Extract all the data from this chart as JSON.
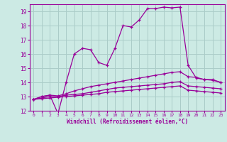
{
  "xlabel": "Windchill (Refroidissement éolien,°C)",
  "bg_color": "#cceae4",
  "grid_color": "#aaccc8",
  "line_color": "#990099",
  "xlim": [
    -0.5,
    23.5
  ],
  "ylim": [
    12,
    19.5
  ],
  "yticks": [
    12,
    13,
    14,
    15,
    16,
    17,
    18,
    19
  ],
  "xticks": [
    0,
    1,
    2,
    3,
    4,
    5,
    6,
    7,
    8,
    9,
    10,
    11,
    12,
    13,
    14,
    15,
    16,
    17,
    18,
    19,
    20,
    21,
    22,
    23
  ],
  "curve1_x": [
    0,
    1,
    2,
    3,
    4,
    5,
    6,
    7,
    8,
    9,
    10,
    11,
    12,
    13,
    14,
    15,
    16,
    17,
    18,
    19,
    20,
    21,
    22,
    23
  ],
  "curve1_y": [
    12.8,
    13.0,
    13.1,
    11.8,
    14.0,
    16.0,
    16.4,
    16.3,
    15.4,
    15.2,
    16.4,
    18.0,
    17.9,
    18.4,
    19.2,
    19.2,
    19.3,
    19.25,
    19.3,
    15.2,
    14.3,
    14.2,
    14.2,
    14.0
  ],
  "curve2_x": [
    0,
    1,
    2,
    3,
    4,
    5,
    6,
    7,
    8,
    9,
    10,
    11,
    12,
    13,
    14,
    15,
    16,
    17,
    18,
    19,
    20,
    21,
    22,
    23
  ],
  "curve2_y": [
    12.8,
    13.0,
    13.1,
    13.05,
    13.2,
    13.4,
    13.55,
    13.7,
    13.8,
    13.9,
    14.0,
    14.1,
    14.2,
    14.3,
    14.4,
    14.5,
    14.6,
    14.7,
    14.75,
    14.4,
    14.35,
    14.2,
    14.15,
    14.0
  ],
  "curve3_x": [
    0,
    1,
    2,
    3,
    4,
    5,
    6,
    7,
    8,
    9,
    10,
    11,
    12,
    13,
    14,
    15,
    16,
    17,
    18,
    19,
    20,
    21,
    22,
    23
  ],
  "curve3_y": [
    12.8,
    12.9,
    13.0,
    13.0,
    13.1,
    13.15,
    13.2,
    13.3,
    13.4,
    13.5,
    13.6,
    13.65,
    13.7,
    13.75,
    13.8,
    13.85,
    13.9,
    14.0,
    14.05,
    13.75,
    13.7,
    13.65,
    13.6,
    13.55
  ],
  "curve4_x": [
    0,
    1,
    2,
    3,
    4,
    5,
    6,
    7,
    8,
    9,
    10,
    11,
    12,
    13,
    14,
    15,
    16,
    17,
    18,
    19,
    20,
    21,
    22,
    23
  ],
  "curve4_y": [
    12.8,
    12.85,
    12.9,
    12.95,
    13.0,
    13.05,
    13.1,
    13.15,
    13.2,
    13.3,
    13.35,
    13.4,
    13.45,
    13.5,
    13.55,
    13.6,
    13.65,
    13.7,
    13.75,
    13.45,
    13.4,
    13.35,
    13.3,
    13.25
  ]
}
